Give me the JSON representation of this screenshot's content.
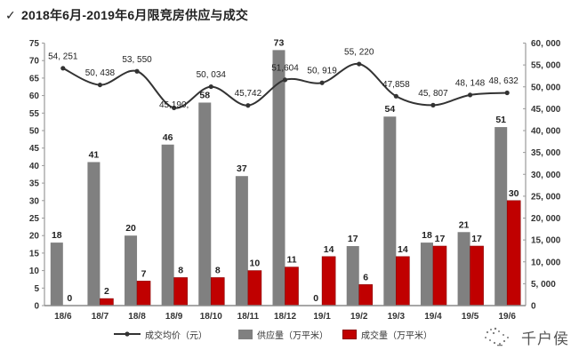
{
  "header": {
    "icon": "check-icon",
    "icon_glyph": "✓",
    "title": "2018年6月-2019年6月限竞房供应与成交"
  },
  "legend": [
    {
      "label": "成交均价（元）",
      "icon": "line-marker-icon",
      "color": "#333333"
    },
    {
      "label": "供应量（万平米）",
      "icon": "gray-square-icon",
      "color": "#808080"
    },
    {
      "label": "成交量（万平米）",
      "icon": "red-square-icon",
      "color": "#c00000"
    }
  ],
  "watermark": {
    "icon": "wechat-dots-icon",
    "text": "千户侯"
  },
  "chart_data": {
    "type": "bar+line",
    "title": "2018年6月-2019年6月限竞房供应与成交",
    "xlabel": "",
    "ylabel": "",
    "grid": false,
    "legend_position": "bottom",
    "categories": [
      "18/6",
      "18/7",
      "18/8",
      "18/9",
      "18/10",
      "18/11",
      "18/12",
      "19/1",
      "19/2",
      "19/3",
      "19/4",
      "19/5",
      "19/6"
    ],
    "series": [
      {
        "name": "供应量（万平米）",
        "type": "bar",
        "axis": "left",
        "color": "#808080",
        "values": [
          18,
          41,
          20,
          46,
          58,
          37,
          73,
          0,
          17,
          54,
          18,
          21,
          51
        ]
      },
      {
        "name": "成交量（万平米）",
        "type": "bar",
        "axis": "left",
        "color": "#c00000",
        "values": [
          0,
          2,
          7,
          8,
          8,
          10,
          11,
          14,
          6,
          14,
          17,
          17,
          30
        ]
      },
      {
        "name": "成交均价（元）",
        "type": "line",
        "axis": "right",
        "color": "#333333",
        "values": [
          54251,
          50438,
          53550,
          45190,
          50034,
          45742,
          51604,
          50919,
          55220,
          47858,
          45807,
          48148,
          48632
        ],
        "labels": [
          "54, 251",
          "50, 438",
          "53, 550",
          "45,190,",
          "50, 034",
          "45,742",
          "51,604",
          "50, 919",
          "55, 220",
          "47,858",
          "45, 807",
          "48, 148",
          "48, 632"
        ]
      }
    ],
    "y_left": {
      "min": 0,
      "max": 75,
      "step": 5,
      "tick_labels": [
        "0",
        "5",
        "10",
        "15",
        "20",
        "25",
        "30",
        "35",
        "40",
        "45",
        "50",
        "55",
        "60",
        "65",
        "70",
        "75"
      ]
    },
    "y_right": {
      "min": 0,
      "max": 60000,
      "step": 5000,
      "tick_labels": [
        "0",
        "5, 000",
        "10, 000",
        "15, 000",
        "20, 000",
        "25, 000",
        "30, 000",
        "35, 000",
        "40, 000",
        "45, 000",
        "50, 000",
        "55, 000",
        "60, 000"
      ]
    }
  }
}
